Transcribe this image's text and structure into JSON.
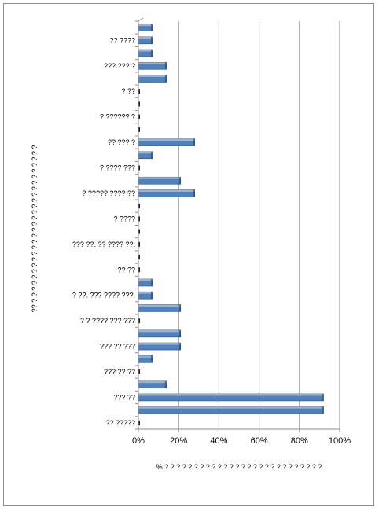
{
  "chart_data": {
    "type": "bar",
    "orientation": "horizontal",
    "xlabel": "% ? ? ? ? ? ? ? ? ? ? ? ? ? ? ? ? ? ? ? ? ? ? ? ? ? ? ?",
    "ylabel": "?? ? ? ? ? ? ? ? ? ? ? ? ? ? ? ? ? ? ? ? ? ? ? ? ? ? ? ?",
    "xlim": [
      0,
      100
    ],
    "x_ticks": [
      "0%",
      "20%",
      "40%",
      "60%",
      "80%",
      "100%"
    ],
    "grid": "vertical",
    "legend": "none",
    "bar_color": "#4f81bd",
    "categories": [
      "?? ?????",
      "",
      "??? ??",
      "",
      "??? ?? ??",
      "",
      "??? ?? ???",
      "",
      "? ? ???? ??? ???",
      "",
      "? ??. ??? ???? ???.",
      "",
      "?? ??",
      "",
      "??? ??. ?? ???? ??.",
      "",
      "? ????",
      "",
      "? ????? ???? ??",
      "",
      "? ???? ???",
      "",
      "?? ??? ?",
      "",
      "? ?????? ?",
      "",
      "? ??",
      "",
      "??? ??? ?",
      "",
      "?? ????",
      ""
    ],
    "values": [
      0,
      92,
      92,
      14,
      0,
      7,
      21,
      21,
      0,
      21,
      7,
      7,
      0,
      0,
      0,
      0,
      0,
      0,
      28,
      21,
      0,
      7,
      28,
      0,
      0,
      0,
      0,
      14,
      14,
      7,
      7,
      7
    ]
  }
}
